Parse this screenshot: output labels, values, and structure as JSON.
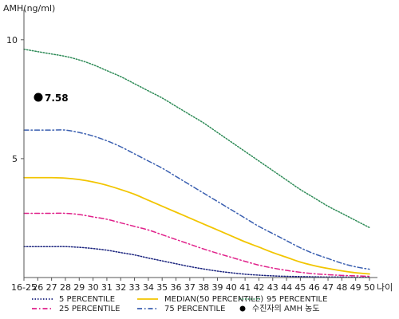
{
  "chart_data": {
    "type": "line",
    "ylabel": "AMH(ng/ml)",
    "xlabel": "나이",
    "ylim": [
      0,
      11
    ],
    "yticks": [
      5,
      10
    ],
    "grid": false,
    "legend_position": "bottom",
    "categories": [
      "16-25",
      "26",
      "27",
      "28",
      "29",
      "30",
      "31",
      "32",
      "33",
      "34",
      "35",
      "36",
      "37",
      "38",
      "39",
      "40",
      "41",
      "42",
      "43",
      "44",
      "45",
      "46",
      "47",
      "48",
      "49",
      "50"
    ],
    "series": [
      {
        "name": "95 PERCENTILE",
        "color": "#2e8b57",
        "style": "dotted",
        "values": [
          9.6,
          9.5,
          9.4,
          9.3,
          9.15,
          8.95,
          8.7,
          8.45,
          8.15,
          7.85,
          7.55,
          7.2,
          6.85,
          6.5,
          6.1,
          5.7,
          5.3,
          4.9,
          4.5,
          4.1,
          3.7,
          3.35,
          3.0,
          2.7,
          2.4,
          2.1
        ]
      },
      {
        "name": "75 PERCENTILE",
        "color": "#3a5fb0",
        "style": "dashdot",
        "values": [
          6.2,
          6.2,
          6.2,
          6.2,
          6.1,
          5.95,
          5.75,
          5.5,
          5.2,
          4.9,
          4.6,
          4.25,
          3.9,
          3.55,
          3.2,
          2.85,
          2.5,
          2.15,
          1.85,
          1.55,
          1.25,
          1.0,
          0.8,
          0.6,
          0.45,
          0.35
        ]
      },
      {
        "name": "MEDIAN(50 PERCENTILE)",
        "color": "#f2c500",
        "style": "solid",
        "values": [
          4.2,
          4.2,
          4.2,
          4.18,
          4.12,
          4.02,
          3.88,
          3.7,
          3.5,
          3.25,
          3.0,
          2.75,
          2.5,
          2.25,
          2.0,
          1.75,
          1.5,
          1.28,
          1.05,
          0.85,
          0.65,
          0.5,
          0.38,
          0.28,
          0.2,
          0.15
        ]
      },
      {
        "name": "25 PERCENTILE",
        "color": "#e0208a",
        "style": "dashdot",
        "values": [
          2.7,
          2.7,
          2.7,
          2.7,
          2.65,
          2.55,
          2.45,
          2.3,
          2.15,
          2.0,
          1.8,
          1.6,
          1.4,
          1.2,
          1.02,
          0.85,
          0.68,
          0.52,
          0.4,
          0.3,
          0.22,
          0.16,
          0.12,
          0.09,
          0.07,
          0.05
        ]
      },
      {
        "name": "5 PERCENTILE",
        "color": "#1a237e",
        "style": "dotted",
        "values": [
          1.3,
          1.3,
          1.3,
          1.3,
          1.27,
          1.22,
          1.15,
          1.05,
          0.95,
          0.82,
          0.7,
          0.58,
          0.46,
          0.36,
          0.27,
          0.2,
          0.14,
          0.1,
          0.07,
          0.05,
          0.04,
          0.03,
          0.02,
          0.02,
          0.01,
          0.01
        ]
      }
    ],
    "patient": {
      "name": "수진자의 AMH 농도",
      "x": "16-25",
      "value": 7.58,
      "label": "7.58",
      "color": "#000000"
    },
    "legend": [
      {
        "name": "5 PERCENTILE",
        "color": "#1a237e",
        "style": "dotted"
      },
      {
        "name": "25 PERCENTILE",
        "color": "#e0208a",
        "style": "dashdot"
      },
      {
        "name": "MEDIAN(50 PERCENTILE)",
        "color": "#f2c500",
        "style": "solid"
      },
      {
        "name": "75 PERCENTILE",
        "color": "#3a5fb0",
        "style": "dashdot"
      },
      {
        "name": "95 PERCENTILE",
        "color": "#2e8b57",
        "style": "dotted"
      },
      {
        "name": "수진자의 AMH 농도",
        "color": "#000000",
        "style": "marker"
      }
    ]
  }
}
